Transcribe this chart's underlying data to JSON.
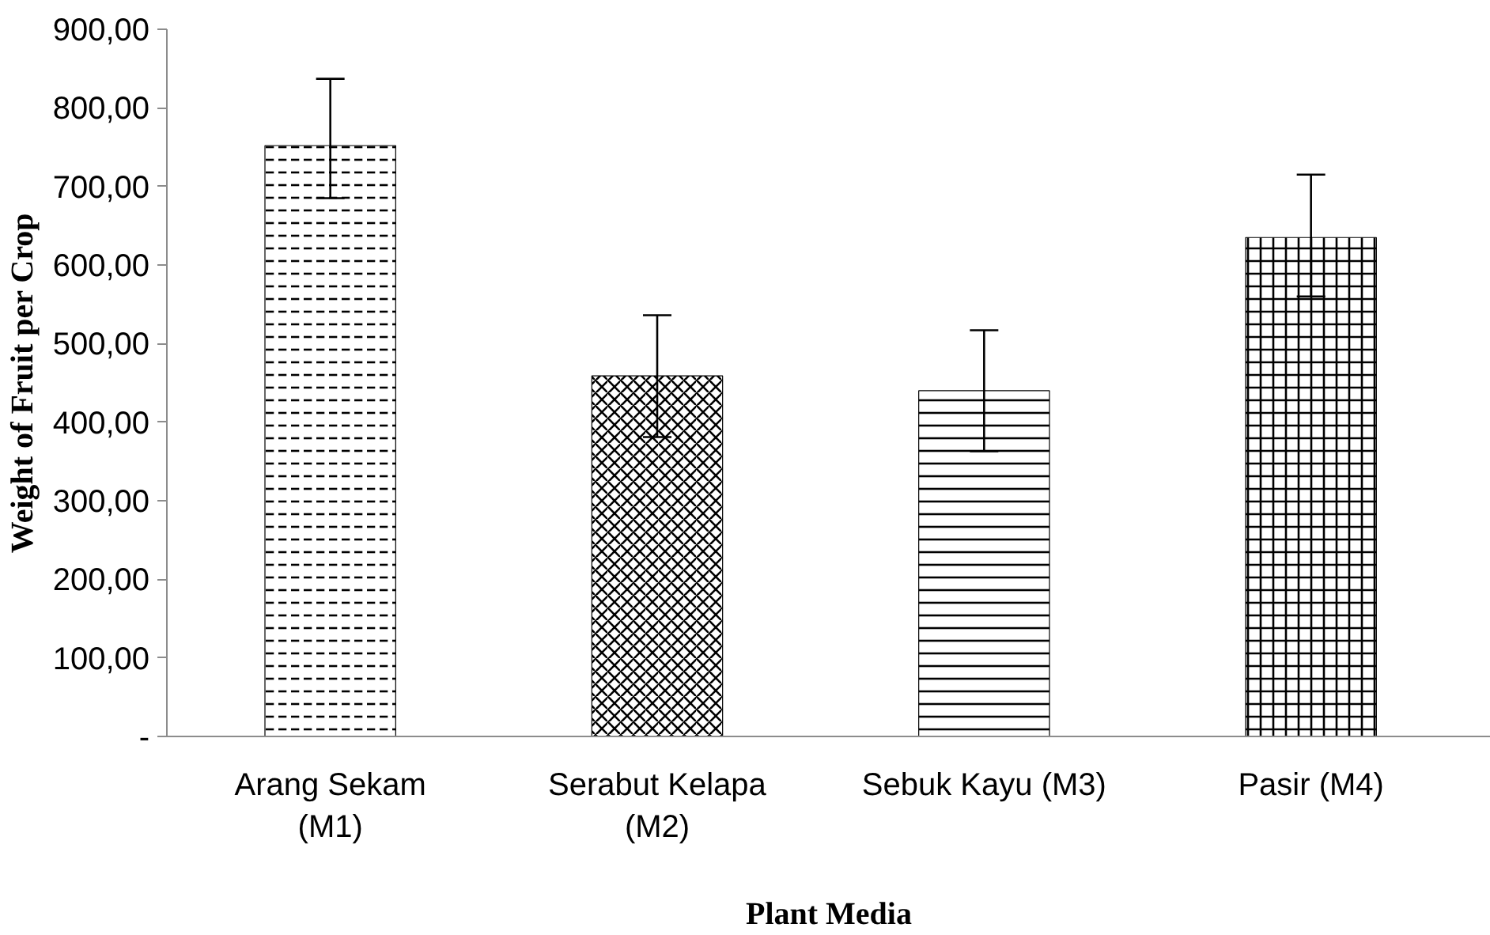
{
  "chart_data": {
    "type": "bar",
    "xlabel": "Plant Media",
    "ylabel": "Weight of Fruit per Crop",
    "categories": [
      "Arang Sekam (M1)",
      "Serabut Kelapa (M2)",
      "Sebuk Kayu (M3)",
      "Pasir (M4)"
    ],
    "values": [
      752,
      459,
      440,
      635
    ],
    "errors": [
      [
        685,
        837
      ],
      [
        381,
        536
      ],
      [
        363,
        517
      ],
      [
        560,
        715
      ]
    ],
    "colors": [
      "#000000",
      "#000000",
      "#000000",
      "#000000"
    ],
    "ylim": [
      0,
      900
    ],
    "yticks": [
      {
        "value": 0,
        "label": "-"
      },
      {
        "value": 100,
        "label": "100,00"
      },
      {
        "value": 200,
        "label": "200,00"
      },
      {
        "value": 300,
        "label": "300,00"
      },
      {
        "value": 400,
        "label": "400,00"
      },
      {
        "value": 500,
        "label": "500,00"
      },
      {
        "value": 600,
        "label": "600,00"
      },
      {
        "value": 700,
        "label": "700,00"
      },
      {
        "value": 800,
        "label": "800,00"
      },
      {
        "value": 900,
        "label": "900,00"
      }
    ],
    "grid": false
  }
}
